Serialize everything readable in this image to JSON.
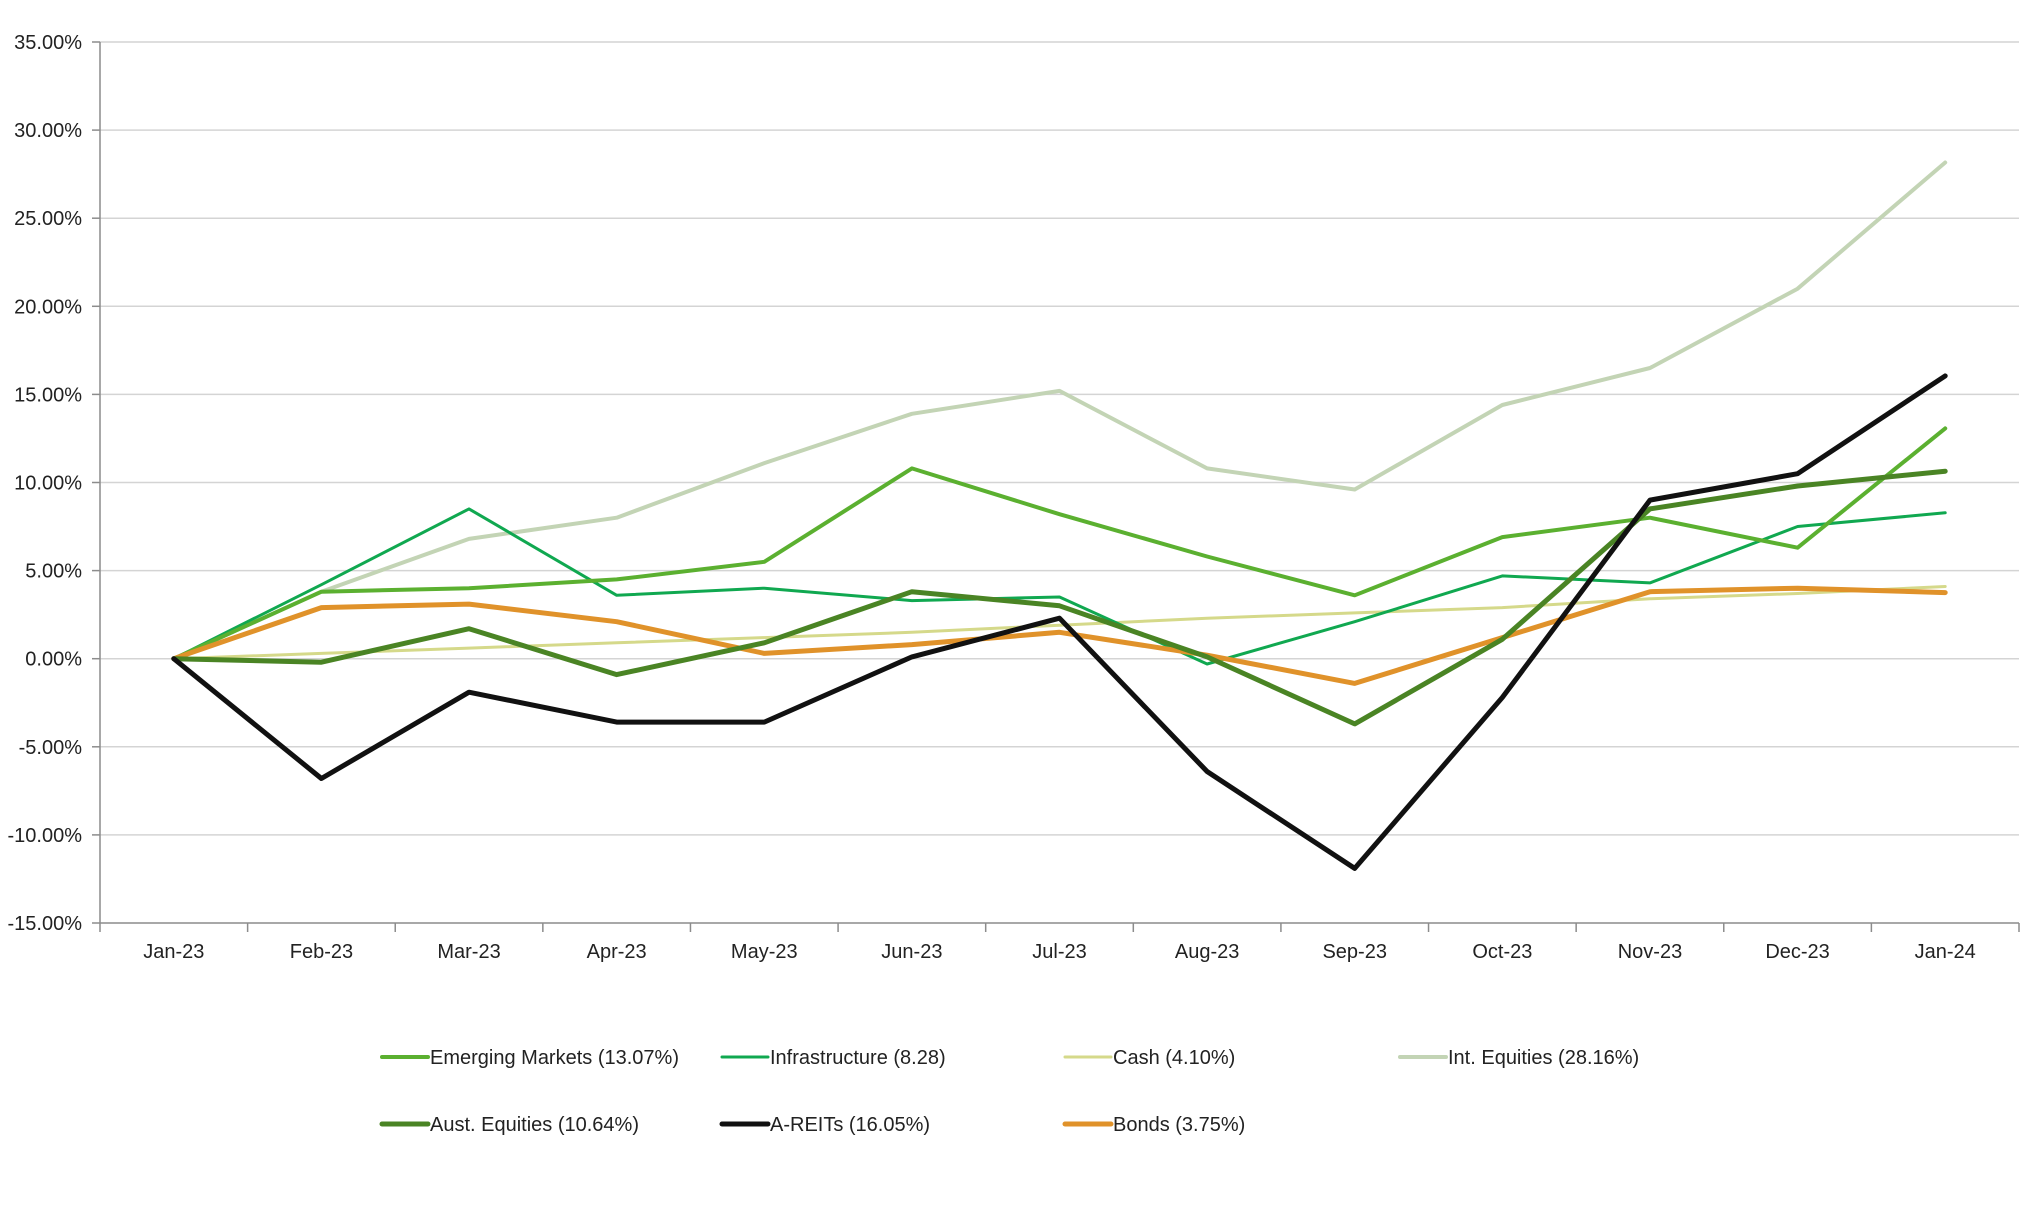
{
  "chart_data": {
    "type": "line",
    "categories": [
      "Jan-23",
      "Feb-23",
      "Mar-23",
      "Apr-23",
      "May-23",
      "Jun-23",
      "Jul-23",
      "Aug-23",
      "Sep-23",
      "Oct-23",
      "Nov-23",
      "Dec-23",
      "Jan-24"
    ],
    "ylim": [
      -15,
      35
    ],
    "yticks": [
      -15,
      -10,
      -5,
      0,
      5,
      10,
      15,
      20,
      25,
      30,
      35
    ],
    "ytick_labels": [
      "-15.00%",
      "-10.00%",
      "-5.00%",
      "0.00%",
      "5.00%",
      "10.00%",
      "15.00%",
      "20.00%",
      "25.00%",
      "30.00%",
      "35.00%"
    ],
    "grid": true,
    "legend_position": "bottom",
    "series": [
      {
        "name": "Emerging Markets (13.07%)",
        "color": "#5bb030",
        "line": "medium",
        "values": [
          0,
          3.8,
          4.0,
          4.5,
          5.5,
          10.8,
          8.2,
          5.8,
          3.6,
          6.9,
          8.0,
          6.3,
          13.07
        ]
      },
      {
        "name": "Infrastructure (8.28)",
        "color": "#10a850",
        "line": "thin",
        "values": [
          0,
          4.2,
          8.5,
          3.6,
          4.0,
          3.3,
          3.5,
          -0.3,
          2.1,
          4.7,
          4.3,
          7.5,
          8.28
        ]
      },
      {
        "name": "Cash (4.10%)",
        "color": "#d5d98a",
        "line": "thin",
        "values": [
          0,
          0.3,
          0.6,
          0.9,
          1.2,
          1.5,
          1.9,
          2.3,
          2.6,
          2.9,
          3.4,
          3.7,
          4.1
        ]
      },
      {
        "name": "Int. Equities (28.16%)",
        "color": "#c3d4b5",
        "line": "medium",
        "values": [
          0,
          3.8,
          6.8,
          8.0,
          11.1,
          13.9,
          15.2,
          10.8,
          9.6,
          14.4,
          16.5,
          21.0,
          28.16
        ]
      },
      {
        "name": "Aust. Equities (10.64%)",
        "color": "#4a8424",
        "line": "thick",
        "values": [
          0,
          -0.2,
          1.7,
          -0.9,
          0.9,
          3.8,
          3.0,
          0.1,
          -3.7,
          1.1,
          8.5,
          9.8,
          10.64
        ]
      },
      {
        "name": "A-REITs (16.05%)",
        "color": "#111111",
        "line": "thick",
        "values": [
          0,
          -6.8,
          -1.9,
          -3.6,
          -3.6,
          0.1,
          2.3,
          -6.4,
          -11.9,
          -2.2,
          9.0,
          10.5,
          16.05
        ]
      },
      {
        "name": "Bonds (3.75%)",
        "color": "#e0922a",
        "line": "thick",
        "values": [
          0,
          2.9,
          3.1,
          2.1,
          0.3,
          0.8,
          1.5,
          0.2,
          -1.4,
          1.2,
          3.8,
          4.0,
          3.75
        ]
      }
    ]
  }
}
